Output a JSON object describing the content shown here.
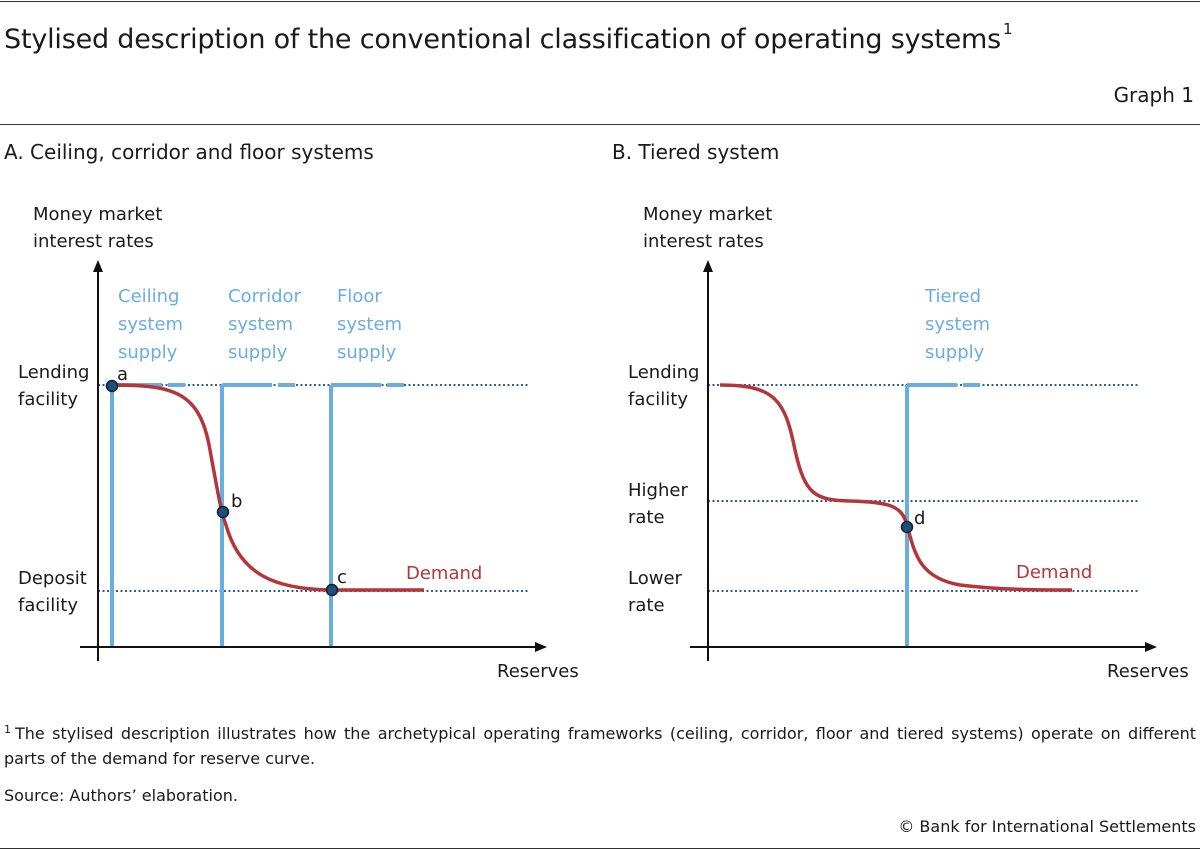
{
  "header": {
    "title": "Stylised description of the conventional classification of operating systems",
    "title_footnote_marker": "1",
    "graph_label": "Graph 1"
  },
  "colors": {
    "supply": "#6aaee0",
    "demand": "#b5363a",
    "rate_line": "#2b5f8f",
    "axis": "#111111",
    "point_fill": "#1f4e79",
    "text": "#1a1a1a"
  },
  "chart_data": [
    {
      "type": "diagram",
      "title": "A. Ceiling, corridor and floor systems",
      "ylabel": [
        "Money market",
        "interest rates"
      ],
      "xlabel": "Reserves",
      "rate_levels": [
        {
          "label": [
            "Lending",
            "facility"
          ],
          "key": "lending"
        },
        {
          "label": [
            "Deposit",
            "facility"
          ],
          "key": "deposit"
        }
      ],
      "supply_curves": [
        {
          "name": [
            "Ceiling",
            "system",
            "supply"
          ],
          "reserves": 0.03
        },
        {
          "name": [
            "Corridor",
            "system",
            "supply"
          ],
          "reserves": 0.28
        },
        {
          "name": [
            "Floor",
            "system",
            "supply"
          ],
          "reserves": 0.53
        }
      ],
      "demand_label": "Demand",
      "points": [
        {
          "label": "a",
          "reserves": 0.03,
          "rate": "lending"
        },
        {
          "label": "b",
          "reserves": 0.28,
          "rate": "mid"
        },
        {
          "label": "c",
          "reserves": 0.53,
          "rate": "deposit"
        }
      ]
    },
    {
      "type": "diagram",
      "title": "B. Tiered system",
      "ylabel": [
        "Money market",
        "interest rates"
      ],
      "xlabel": "Reserves",
      "rate_levels": [
        {
          "label": [
            "Lending",
            "facility"
          ],
          "key": "lending"
        },
        {
          "label": [
            "Higher",
            "rate"
          ],
          "key": "higher"
        },
        {
          "label": [
            "Lower",
            "rate"
          ],
          "key": "lower"
        }
      ],
      "supply_curves": [
        {
          "name": [
            "Tiered",
            "system",
            "supply"
          ],
          "reserves": 0.46
        }
      ],
      "demand_label": "Demand",
      "points": [
        {
          "label": "d",
          "reserves": 0.46,
          "rate": "between higher and lower"
        }
      ]
    }
  ],
  "footnote": {
    "marker": "1",
    "text": "The stylised description illustrates how the archetypical operating frameworks (ceiling, corridor, floor and tiered systems) operate on different parts of the demand for reserve curve."
  },
  "source": "Source: Authors’ elaboration.",
  "copyright": "© Bank for International Settlements"
}
